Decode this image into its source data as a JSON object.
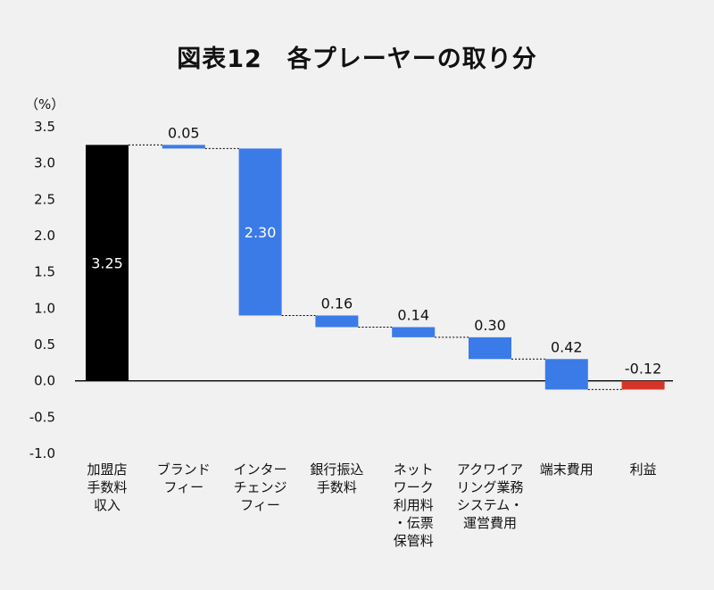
{
  "chart_data": {
    "type": "waterfall",
    "title": "図表12　各プレーヤーの取り分",
    "unit": "（%）",
    "ylim": [
      -1.0,
      3.5
    ],
    "yticks": [
      "3.5",
      "3.0",
      "2.5",
      "2.0",
      "1.5",
      "1.0",
      "0.5",
      "0.0",
      "-0.5",
      "-1.0"
    ],
    "ytick_values": [
      3.5,
      3.0,
      2.5,
      2.0,
      1.5,
      1.0,
      0.5,
      0.0,
      -0.5,
      -1.0
    ],
    "categories": [
      [
        "加盟店",
        "手数料",
        "収入"
      ],
      [
        "ブランド",
        "フィー"
      ],
      [
        "インター",
        "チェンジ",
        "フィー"
      ],
      [
        "銀行振込",
        "手数料"
      ],
      [
        "ネット",
        "ワーク",
        "利用料",
        "・伝票",
        "保管料"
      ],
      [
        "アクワイア",
        "リング業務",
        "システム・",
        "運営費用"
      ],
      [
        "端末費用"
      ],
      [
        "利益"
      ]
    ],
    "bars": [
      {
        "label": "3.25",
        "start": 0.0,
        "end": 3.25
      },
      {
        "label": "0.05",
        "start": 3.25,
        "end": 3.2
      },
      {
        "label": "2.30",
        "start": 3.2,
        "end": 0.9
      },
      {
        "label": "0.16",
        "start": 0.9,
        "end": 0.74
      },
      {
        "label": "0.14",
        "start": 0.74,
        "end": 0.6
      },
      {
        "label": "0.30",
        "start": 0.6,
        "end": 0.3
      },
      {
        "label": "0.42",
        "start": 0.3,
        "end": -0.12
      },
      {
        "label": "-0.12",
        "start": -0.12,
        "end": 0.0
      }
    ],
    "colors": {
      "total": "#000000",
      "component": "#3b7be8",
      "negative": "#d4352b",
      "axis": "#000000",
      "connector": "#000000"
    },
    "bar_kinds": [
      "total",
      "component",
      "component",
      "component",
      "component",
      "component",
      "component",
      "negative"
    ],
    "grid": false
  }
}
